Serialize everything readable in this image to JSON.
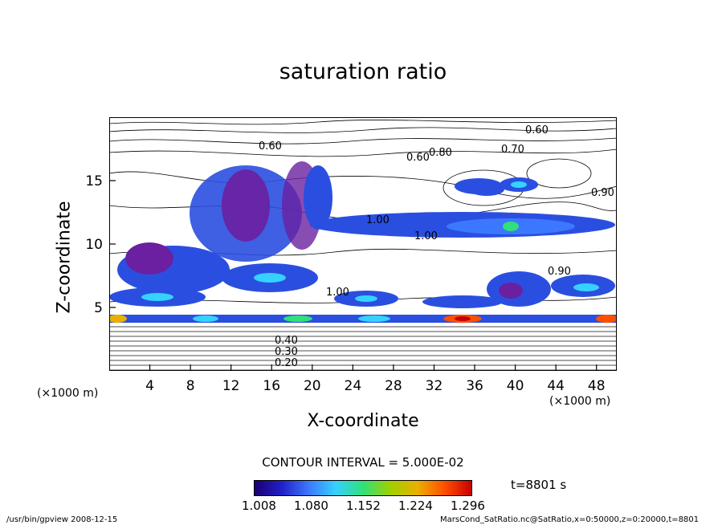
{
  "chart_data": {
    "type": "heatmap",
    "title": "saturation ratio",
    "xlabel": "X-coordinate",
    "ylabel": "Z-coordinate",
    "x_unit": "(×1000 m)",
    "x_ticks": [
      "4",
      "8",
      "12",
      "16",
      "20",
      "24",
      "28",
      "32",
      "36",
      "40",
      "44",
      "48"
    ],
    "y_ticks": [
      "5",
      "10",
      "15"
    ],
    "xlim": [
      0,
      50
    ],
    "ylim": [
      0,
      20
    ],
    "contour_labels": [
      "0.60",
      "0.60",
      "0.60",
      "0.70",
      "0.80",
      "0.90",
      "1.00",
      "1.00",
      "1.00",
      "0.90",
      "0.20",
      "0.30",
      "0.40"
    ],
    "contour_interval": "CONTOUR INTERVAL = 5.000E-02",
    "time": "t=8801 s",
    "colorbar_labels": [
      "1.008",
      "1.080",
      "1.152",
      "1.224",
      "1.296"
    ],
    "colorbar_colors": [
      "#1a0070",
      "#2020c8",
      "#3c78ff",
      "#35d2ff",
      "#30e07a",
      "#a0d000",
      "#e8b000",
      "#ff5000",
      "#c80000"
    ]
  },
  "footer": {
    "left": "/usr/bin/gpview   2008-12-15",
    "right": "MarsCond_SatRatio.nc@SatRatio,x=0:50000,z=0:20000,t=8801"
  }
}
